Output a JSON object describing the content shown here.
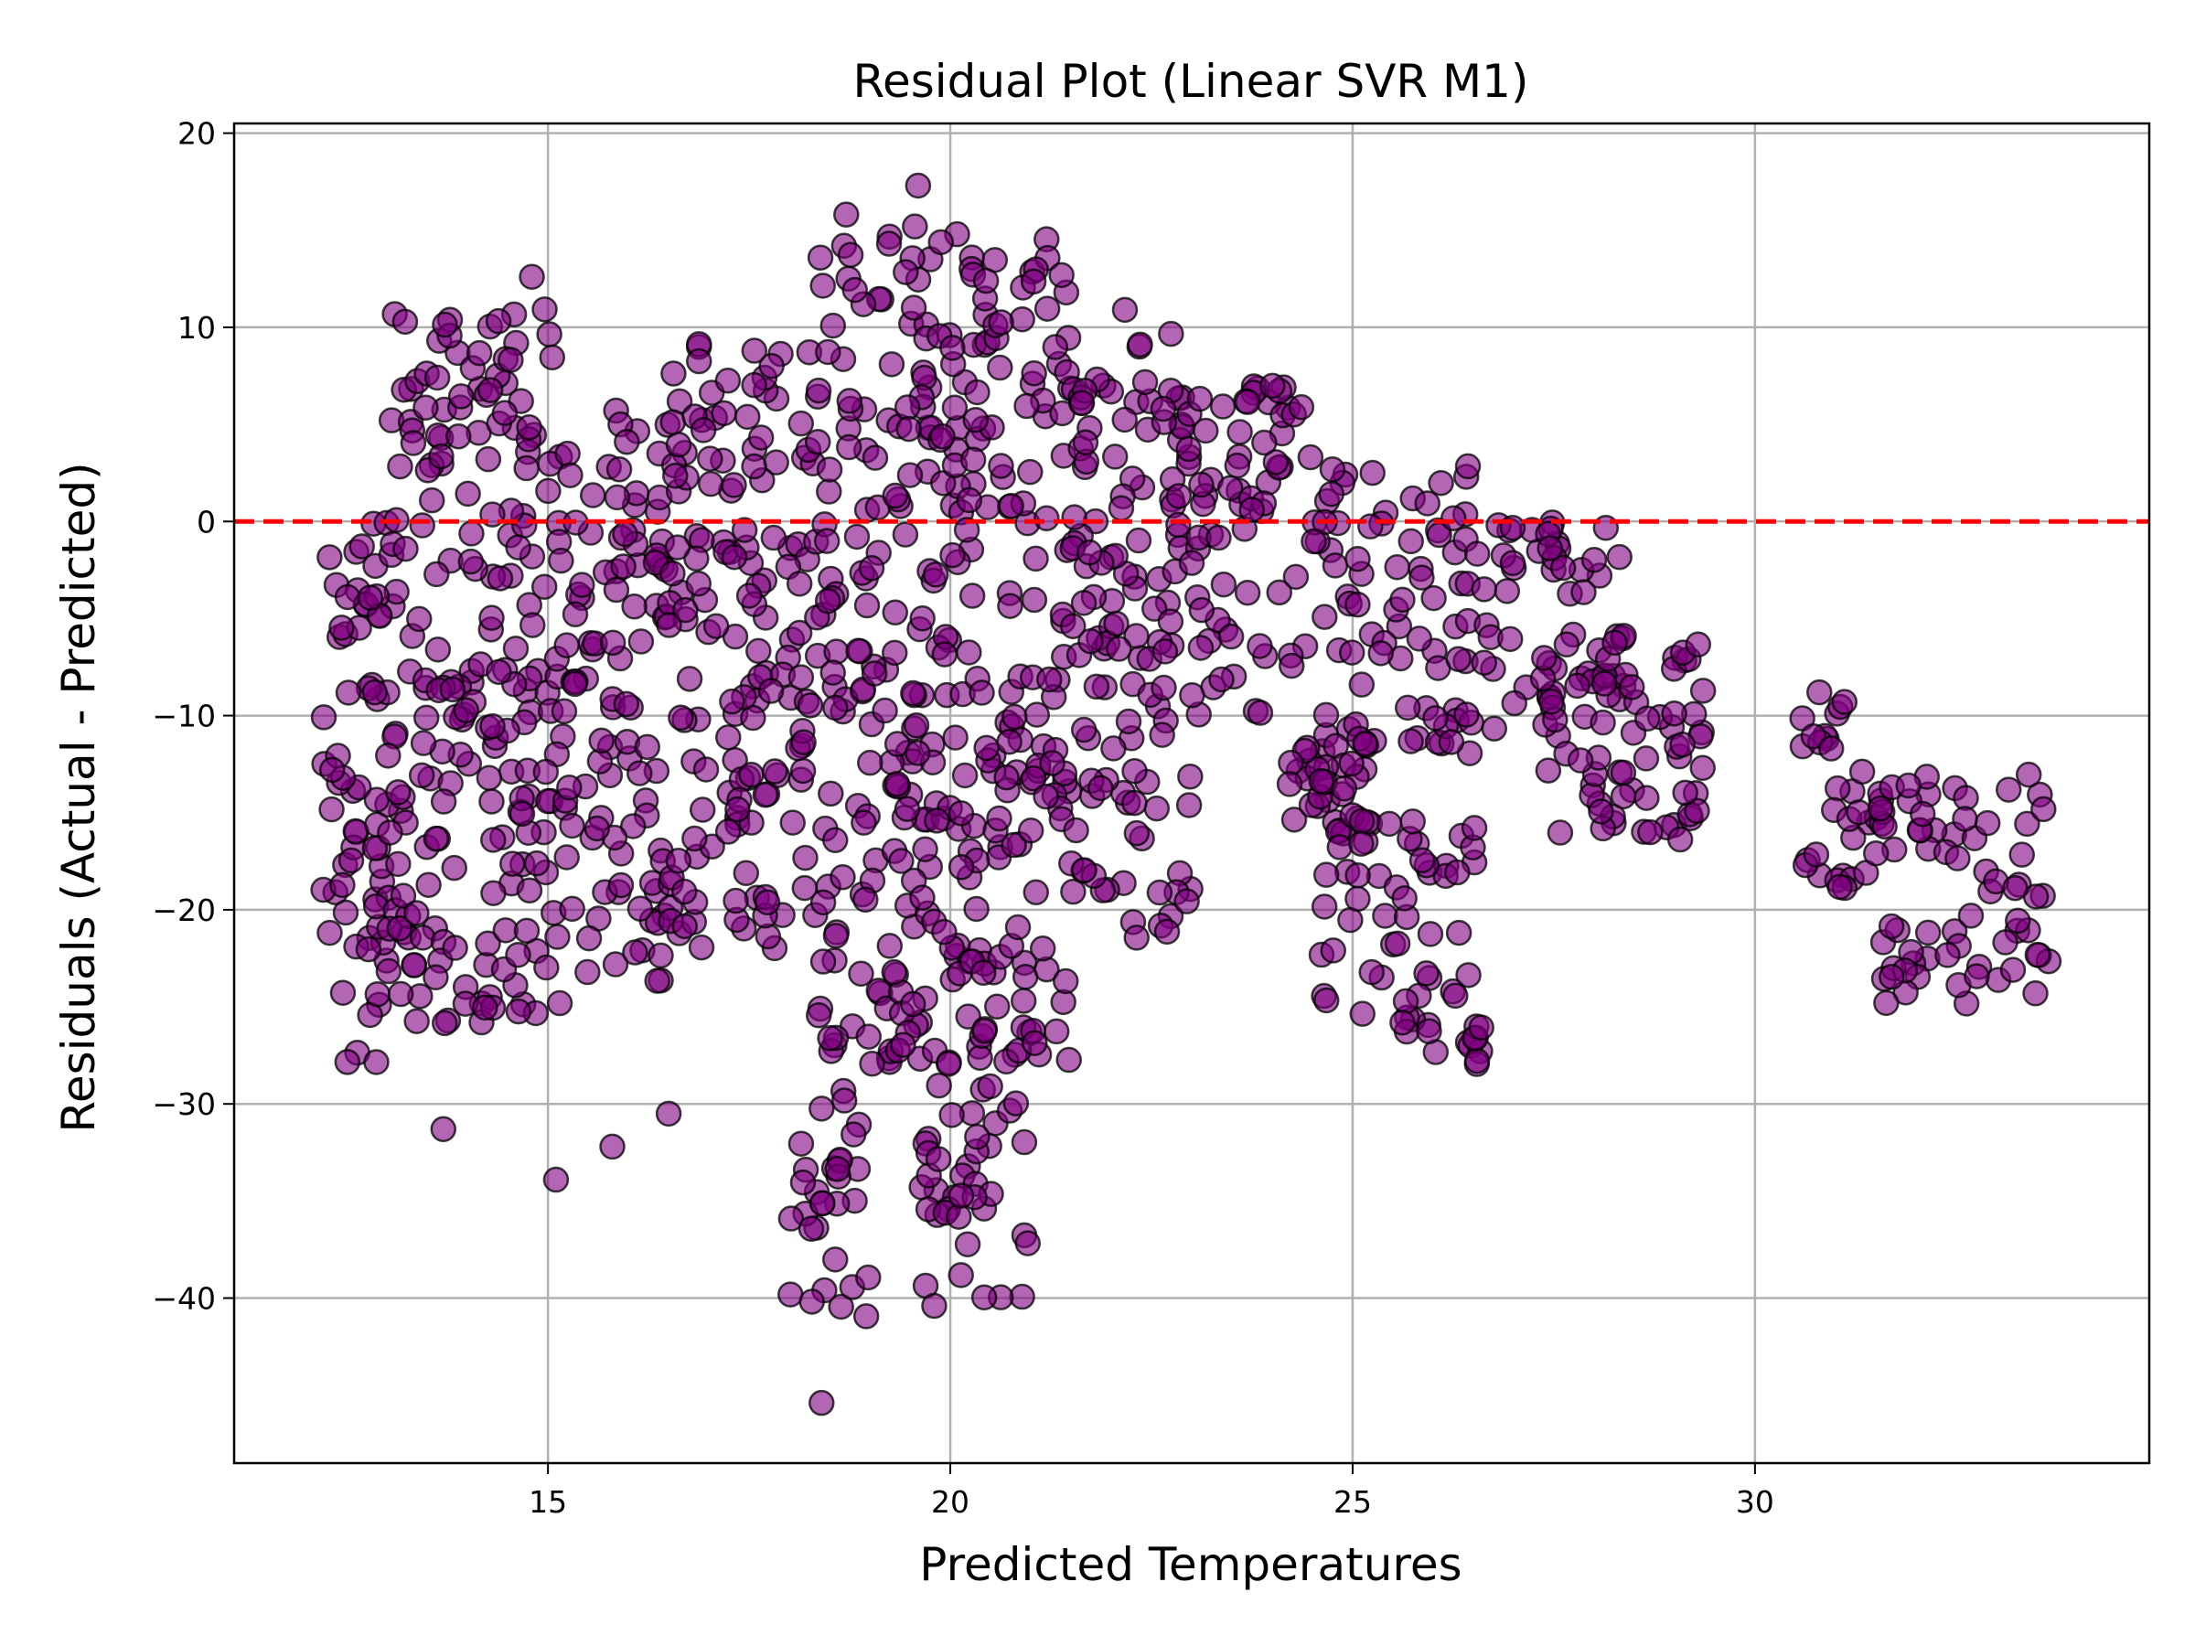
{
  "chart_data": {
    "type": "scatter",
    "title": "Residual Plot (Linear SVR M1)",
    "xlabel": "Predicted Temperatures",
    "ylabel": "Residuals (Actual - Predicted)",
    "xlim": [
      11.1,
      34.9
    ],
    "ylim": [
      -48.5,
      20.5
    ],
    "xticks": [
      15,
      20,
      25,
      30
    ],
    "yticks": [
      20,
      10,
      0,
      -10,
      -20,
      -30,
      -40
    ],
    "xtick_labels": [
      "15",
      "20",
      "25",
      "30"
    ],
    "ytick_labels": [
      "20",
      "10",
      "0",
      "−10",
      "−20",
      "−30",
      "−40"
    ],
    "grid": true,
    "reference_line": {
      "y": 0,
      "style": "dashed",
      "color": "#ff0000"
    },
    "marker": {
      "fill": "#800080",
      "edge": "#000000",
      "alpha": 0.6
    },
    "point_regions": [
      {
        "x_range": [
          12.2,
          13.2
        ],
        "y_range": [
          -28,
          0
        ]
      },
      {
        "x_range": [
          13.0,
          15.2
        ],
        "y_range": [
          -26,
          11
        ]
      },
      {
        "x_range": [
          15.2,
          16.5
        ],
        "y_range": [
          -24,
          6
        ]
      },
      {
        "x_range": [
          16.5,
          18.3
        ],
        "y_range": [
          -22,
          10
        ]
      },
      {
        "x_range": [
          18.3,
          19.8
        ],
        "y_range": [
          -28,
          16
        ]
      },
      {
        "x_range": [
          19.8,
          21.5
        ],
        "y_range": [
          -28,
          15
        ]
      },
      {
        "x_range": [
          21.5,
          23.0
        ],
        "y_range": [
          -22,
          11
        ]
      },
      {
        "x_range": [
          23.0,
          24.5
        ],
        "y_range": [
          -10,
          7
        ]
      },
      {
        "x_range": [
          24.5,
          26.5
        ],
        "y_range": [
          -12,
          3
        ]
      },
      {
        "x_range": [
          26.5,
          28.4
        ],
        "y_range": [
          -12,
          0
        ]
      },
      {
        "x_range": [
          27.3,
          29.4
        ],
        "y_range": [
          -17,
          -6
        ]
      },
      {
        "x_range": [
          24.2,
          25.2
        ],
        "y_range": [
          -16,
          -11
        ]
      },
      {
        "x_range": [
          24.6,
          26.6
        ],
        "y_range": [
          -28,
          -15
        ]
      },
      {
        "x_range": [
          18.0,
          19.0
        ],
        "y_range": [
          -41,
          -29
        ]
      },
      {
        "x_range": [
          19.6,
          21.0
        ],
        "y_range": [
          -40,
          -29
        ]
      },
      {
        "x_range": [
          30.4,
          31.6
        ],
        "y_range": [
          -19,
          -9
        ]
      },
      {
        "x_range": [
          31.5,
          33.7
        ],
        "y_range": [
          -25,
          -13
        ]
      }
    ],
    "outliers": [
      {
        "x": 13.7,
        "y": -31.3
      },
      {
        "x": 15.1,
        "y": -33.9
      },
      {
        "x": 15.8,
        "y": -32.2
      },
      {
        "x": 16.5,
        "y": -30.5
      },
      {
        "x": 18.4,
        "y": -45.4
      },
      {
        "x": 19.8,
        "y": -40.4
      },
      {
        "x": 14.8,
        "y": 12.6
      },
      {
        "x": 19.6,
        "y": 17.3
      },
      {
        "x": 30.8,
        "y": -8.8
      }
    ]
  }
}
